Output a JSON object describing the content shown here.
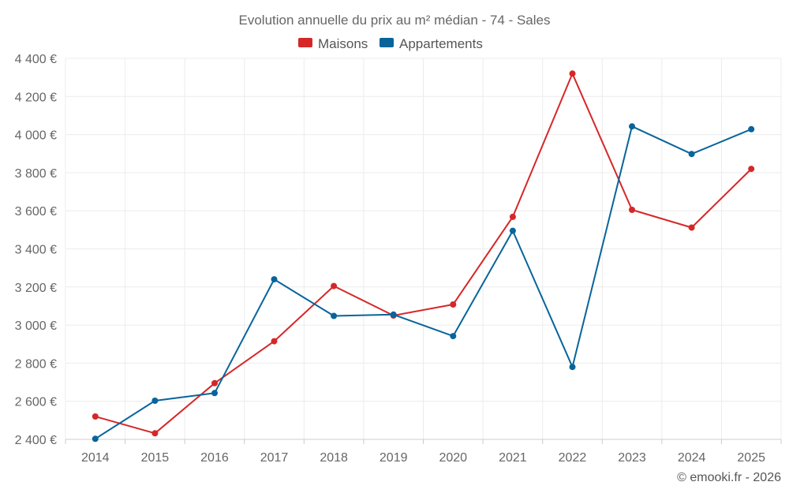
{
  "chart_data": {
    "type": "line",
    "title": "Evolution annuelle du prix au m² médian - 74 - Sales",
    "categories": [
      "2014",
      "2015",
      "2016",
      "2017",
      "2018",
      "2019",
      "2020",
      "2021",
      "2022",
      "2023",
      "2024",
      "2025"
    ],
    "series": [
      {
        "name": "Maisons",
        "color": "#d62728",
        "values": [
          2520,
          2432,
          2695,
          2915,
          3205,
          3050,
          3108,
          3568,
          4320,
          3605,
          3512,
          3820
        ]
      },
      {
        "name": "Appartements",
        "color": "#08649b",
        "values": [
          2403,
          2603,
          2643,
          3240,
          3048,
          3055,
          2942,
          3495,
          2780,
          4043,
          3898,
          4028
        ]
      }
    ],
    "ylim": [
      2400,
      4400
    ],
    "yticks": [
      2400,
      2600,
      2800,
      3000,
      3200,
      3400,
      3600,
      3800,
      4000,
      4200,
      4400
    ],
    "ytick_labels": [
      "2 400 €",
      "2 600 €",
      "2 800 €",
      "3 000 €",
      "3 200 €",
      "3 400 €",
      "3 600 €",
      "3 800 €",
      "4 000 €",
      "4 200 €",
      "4 400 €"
    ],
    "xlabel": "",
    "ylabel": "",
    "grid": true,
    "legend_position": "top-center"
  },
  "credit": "© emooki.fr - 2026"
}
